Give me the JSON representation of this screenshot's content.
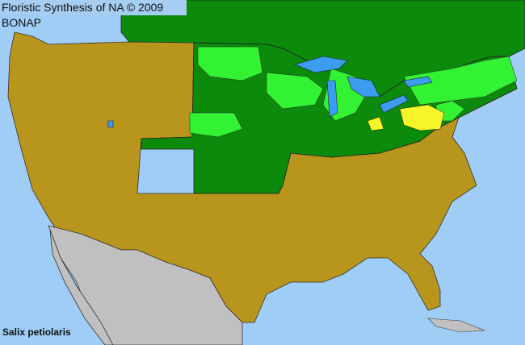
{
  "map": {
    "title": "Floristic Synthesis of NA © 2009 BONAP",
    "species": "Salix petiolaris",
    "colors": {
      "ocean": "#9fcdf5",
      "lakes": "#3c9cf0",
      "canada": "#0b8a0b",
      "native_present": "#0b8a0b",
      "native_county": "#33f233",
      "rare": "#f5f52a",
      "absent": "#b8951c",
      "mexico": "#c0c0c0",
      "borders": "#333333"
    }
  }
}
